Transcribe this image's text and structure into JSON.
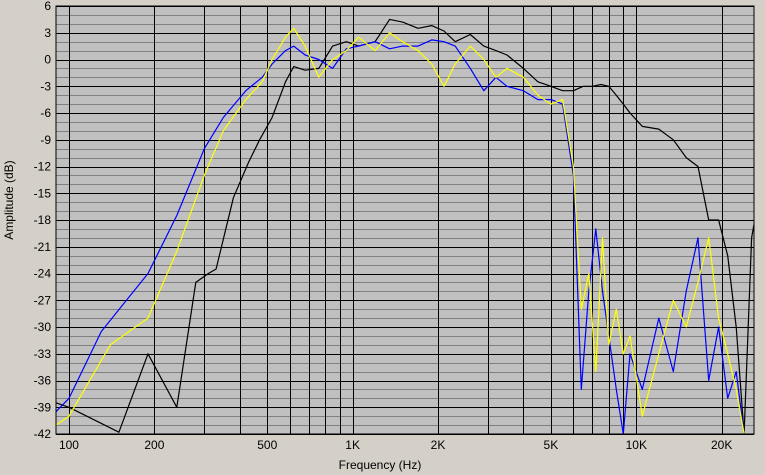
{
  "chart_data": {
    "type": "line",
    "title": "",
    "xlabel": "Frequency (Hz)",
    "ylabel": "Amplitude (dB)",
    "x_scale": "log",
    "xlim": [
      90,
      26000
    ],
    "ylim": [
      -42,
      6
    ],
    "y_ticks": [
      6,
      3,
      0,
      -3,
      -6,
      -9,
      -12,
      -15,
      -18,
      -21,
      -24,
      -27,
      -30,
      -33,
      -36,
      -39,
      -42
    ],
    "y_tick_labels": [
      "6",
      "3",
      "0",
      "-3",
      "-6",
      "-9",
      "-12",
      "-15",
      "-18",
      "-21",
      "-24",
      "-27",
      "-30",
      "-33",
      "-36",
      "-39",
      "-42"
    ],
    "x_tick_values": [
      100,
      200,
      500,
      1000,
      2000,
      5000,
      10000,
      20000
    ],
    "x_tick_labels": [
      "100",
      "200",
      "500",
      "1K",
      "2K",
      "5K",
      "10K",
      "20K"
    ],
    "grid": true,
    "background": "#c0c0c0",
    "series": [
      {
        "color": "#000000",
        "points": [
          [
            90,
            -38.5
          ],
          [
            100,
            -39
          ],
          [
            150,
            -41.8
          ],
          [
            190,
            -33
          ],
          [
            240,
            -39
          ],
          [
            280,
            -25
          ],
          [
            310,
            -24
          ],
          [
            330,
            -23.5
          ],
          [
            380,
            -15.5
          ],
          [
            430,
            -11.5
          ],
          [
            470,
            -9
          ],
          [
            520,
            -6.5
          ],
          [
            580,
            -2.5
          ],
          [
            620,
            -0.8
          ],
          [
            680,
            -1.2
          ],
          [
            760,
            -1
          ],
          [
            850,
            1.5
          ],
          [
            950,
            2
          ],
          [
            1050,
            1.5
          ],
          [
            1200,
            2
          ],
          [
            1350,
            4.5
          ],
          [
            1500,
            4.2
          ],
          [
            1700,
            3.5
          ],
          [
            1900,
            3.8
          ],
          [
            2100,
            3.2
          ],
          [
            2300,
            2
          ],
          [
            2600,
            2.8
          ],
          [
            2900,
            1.5
          ],
          [
            3200,
            1
          ],
          [
            3500,
            0.5
          ],
          [
            4000,
            -1
          ],
          [
            4500,
            -2.5
          ],
          [
            5000,
            -3
          ],
          [
            5500,
            -3.5
          ],
          [
            6000,
            -3.5
          ],
          [
            6500,
            -3
          ],
          [
            7000,
            -3
          ],
          [
            7500,
            -2.8
          ],
          [
            8000,
            -3
          ],
          [
            8500,
            -4
          ],
          [
            9000,
            -5
          ],
          [
            9500,
            -6
          ],
          [
            10500,
            -7.5
          ],
          [
            12000,
            -7.8
          ],
          [
            13500,
            -9
          ],
          [
            15000,
            -11
          ],
          [
            16500,
            -12
          ],
          [
            18000,
            -18
          ],
          [
            19500,
            -18
          ],
          [
            21000,
            -22
          ],
          [
            22500,
            -30
          ],
          [
            24000,
            -42
          ],
          [
            25500,
            -20
          ],
          [
            26000,
            -18.5
          ]
        ]
      },
      {
        "color": "#0000ff",
        "points": [
          [
            90,
            -39.5
          ],
          [
            100,
            -38
          ],
          [
            130,
            -30.5
          ],
          [
            190,
            -24
          ],
          [
            240,
            -17.5
          ],
          [
            300,
            -10
          ],
          [
            350,
            -6.5
          ],
          [
            420,
            -3.5
          ],
          [
            480,
            -2
          ],
          [
            520,
            -0.5
          ],
          [
            580,
            1
          ],
          [
            620,
            1.5
          ],
          [
            680,
            0.5
          ],
          [
            760,
            0
          ],
          [
            850,
            -1
          ],
          [
            950,
            1.2
          ],
          [
            1050,
            1.5
          ],
          [
            1200,
            2
          ],
          [
            1350,
            1.2
          ],
          [
            1500,
            1.5
          ],
          [
            1700,
            1.5
          ],
          [
            1900,
            2.2
          ],
          [
            2100,
            2
          ],
          [
            2300,
            1.5
          ],
          [
            2600,
            -1
          ],
          [
            2900,
            -3.5
          ],
          [
            3200,
            -2
          ],
          [
            3500,
            -3
          ],
          [
            4000,
            -3.5
          ],
          [
            4500,
            -4.5
          ],
          [
            5000,
            -4.5
          ],
          [
            5500,
            -5
          ],
          [
            6000,
            -13
          ],
          [
            6400,
            -37
          ],
          [
            6800,
            -26
          ],
          [
            7200,
            -19
          ],
          [
            7600,
            -26
          ],
          [
            8000,
            -31
          ],
          [
            8500,
            -37
          ],
          [
            9000,
            -42
          ],
          [
            9500,
            -33
          ],
          [
            10500,
            -37
          ],
          [
            12000,
            -29
          ],
          [
            13500,
            -35
          ],
          [
            15000,
            -26
          ],
          [
            16500,
            -20
          ],
          [
            18000,
            -36
          ],
          [
            19500,
            -30
          ],
          [
            21000,
            -38
          ],
          [
            22500,
            -35
          ],
          [
            24000,
            -42
          ]
        ]
      },
      {
        "color": "#ffff00",
        "points": [
          [
            90,
            -41
          ],
          [
            100,
            -40
          ],
          [
            140,
            -32
          ],
          [
            190,
            -29
          ],
          [
            240,
            -21.5
          ],
          [
            300,
            -13
          ],
          [
            350,
            -8
          ],
          [
            420,
            -4.5
          ],
          [
            480,
            -2.5
          ],
          [
            520,
            0
          ],
          [
            580,
            2.5
          ],
          [
            620,
            3.5
          ],
          [
            680,
            1.5
          ],
          [
            760,
            -2
          ],
          [
            850,
            0
          ],
          [
            950,
            1
          ],
          [
            1050,
            2.5
          ],
          [
            1200,
            1
          ],
          [
            1350,
            3
          ],
          [
            1500,
            2
          ],
          [
            1700,
            1
          ],
          [
            1900,
            -0.5
          ],
          [
            2100,
            -3
          ],
          [
            2300,
            -0.5
          ],
          [
            2600,
            1.5
          ],
          [
            2900,
            0
          ],
          [
            3200,
            -2
          ],
          [
            3500,
            -1
          ],
          [
            4000,
            -2
          ],
          [
            4500,
            -4
          ],
          [
            5000,
            -5
          ],
          [
            5500,
            -4.5
          ],
          [
            6000,
            -12
          ],
          [
            6400,
            -28
          ],
          [
            6800,
            -24
          ],
          [
            7200,
            -35
          ],
          [
            7600,
            -20
          ],
          [
            8000,
            -32
          ],
          [
            8500,
            -28
          ],
          [
            9000,
            -33
          ],
          [
            9500,
            -31
          ],
          [
            10500,
            -40
          ],
          [
            12000,
            -33
          ],
          [
            13500,
            -27
          ],
          [
            15000,
            -30
          ],
          [
            16500,
            -25
          ],
          [
            18000,
            -20
          ],
          [
            19500,
            -29
          ],
          [
            21000,
            -33
          ],
          [
            22500,
            -37
          ],
          [
            24000,
            -42
          ]
        ]
      }
    ]
  }
}
